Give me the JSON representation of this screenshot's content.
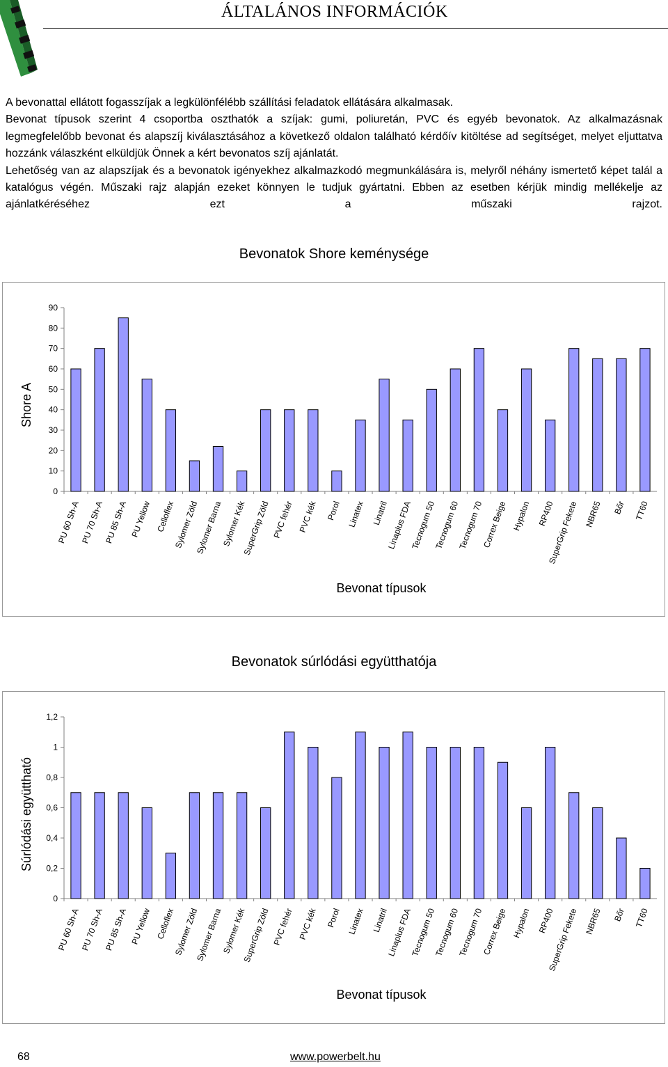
{
  "header": {
    "title": "ÁLTALÁNOS INFORMÁCIÓK"
  },
  "intro": {
    "paragraphs": [
      "A bevonattal ellátott fogasszíjak a legkülönfélébb szállítási feladatok ellátására alkalmasak.",
      "Bevonat típusok szerint 4 csoportba oszthatók a szíjak: gumi, poliuretán, PVC és egyéb bevonatok. Az alkalmazásnak legmegfelelőbb bevonat és alapszíj kiválasztásához a következő oldalon található kérdőív kitöltése ad segítséget, melyet eljuttatva hozzánk válaszként elküldjük Önnek a kért bevonatos szíj ajánlatát.",
      "Lehetőség van az alapszíjak és a bevonatok igényekhez alkalmazkodó megmunkálására is, melyről néhány ismertető képet talál a katalógus végén. Műszaki rajz alapján ezeket könnyen le tudjuk gyártatni. Ebben az esetben kérjük mindig mellékelje az ajánlatkéréséhez ezt a műszaki rajzot."
    ]
  },
  "colors": {
    "bar_fill": "#9999ff",
    "bar_stroke": "#000000",
    "axis": "#808080"
  },
  "chart_data": [
    {
      "type": "bar",
      "title": "Bevonatok Shore keménysége",
      "xlabel": "Bevonat típusok",
      "ylabel": "Shore A",
      "ylim": [
        0,
        90
      ],
      "yticks": [
        "0",
        "10",
        "20",
        "30",
        "40",
        "50",
        "60",
        "70",
        "80",
        "90"
      ],
      "grid": false,
      "categories": [
        "PU 60 Sh-A",
        "PU 70 Sh-A",
        "PU 85 Sh-A",
        "PU Yellow",
        "Celloflex",
        "Sylomer Zöld",
        "Sylomer Barna",
        "Sylomer Kék",
        "SuperGrip Zöld",
        "PVC fehér",
        "PVC kék",
        "Porol",
        "Linatex",
        "Linatril",
        "Linaplus FDA",
        "Tecnogum 50",
        "Tecnogum 60",
        "Tecnogum 70",
        "Correx Beige",
        "Hypalon",
        "RP400",
        "SuperGrip Fekete",
        "NBR65",
        "Bőr",
        "TT60"
      ],
      "values": [
        60,
        70,
        85,
        55,
        40,
        15,
        22,
        10,
        40,
        40,
        40,
        10,
        35,
        55,
        35,
        50,
        60,
        70,
        40,
        60,
        35,
        70,
        65,
        65,
        70
      ]
    },
    {
      "type": "bar",
      "title": "Bevonatok súrlódási együtthatója",
      "xlabel": "Bevonat típusok",
      "ylabel": "Súrlódási együttható",
      "ylim": [
        0,
        1.2
      ],
      "yticks": [
        "0",
        "0,2",
        "0,4",
        "0,6",
        "0,8",
        "1",
        "1,2"
      ],
      "grid": false,
      "categories": [
        "PU 60 Sh-A",
        "PU 70 Sh-A",
        "PU 85 Sh-A",
        "PU Yellow",
        "Celloflex",
        "Sylomer Zöld",
        "Sylomer Barna",
        "Sylomer Kék",
        "SuperGrip Zöld",
        "PVC fehér",
        "PVC kék",
        "Porol",
        "Linatex",
        "Linatril",
        "Linaplus FDA",
        "Tecnogum 50",
        "Tecnogum 60",
        "Tecnogum 70",
        "Correx Beige",
        "Hypalon",
        "RP400",
        "SuperGrip Fekete",
        "NBR65",
        "Bőr",
        "TT60"
      ],
      "values": [
        0.7,
        0.7,
        0.7,
        0.6,
        0.3,
        0.7,
        0.7,
        0.7,
        0.6,
        1.1,
        1.0,
        0.8,
        1.1,
        1.0,
        1.1,
        1.0,
        1.0,
        1.0,
        0.9,
        0.6,
        1.0,
        0.7,
        0.6,
        0.4,
        0.2
      ]
    }
  ],
  "footer": {
    "page_number": "68",
    "url": "www.powerbelt.hu"
  }
}
